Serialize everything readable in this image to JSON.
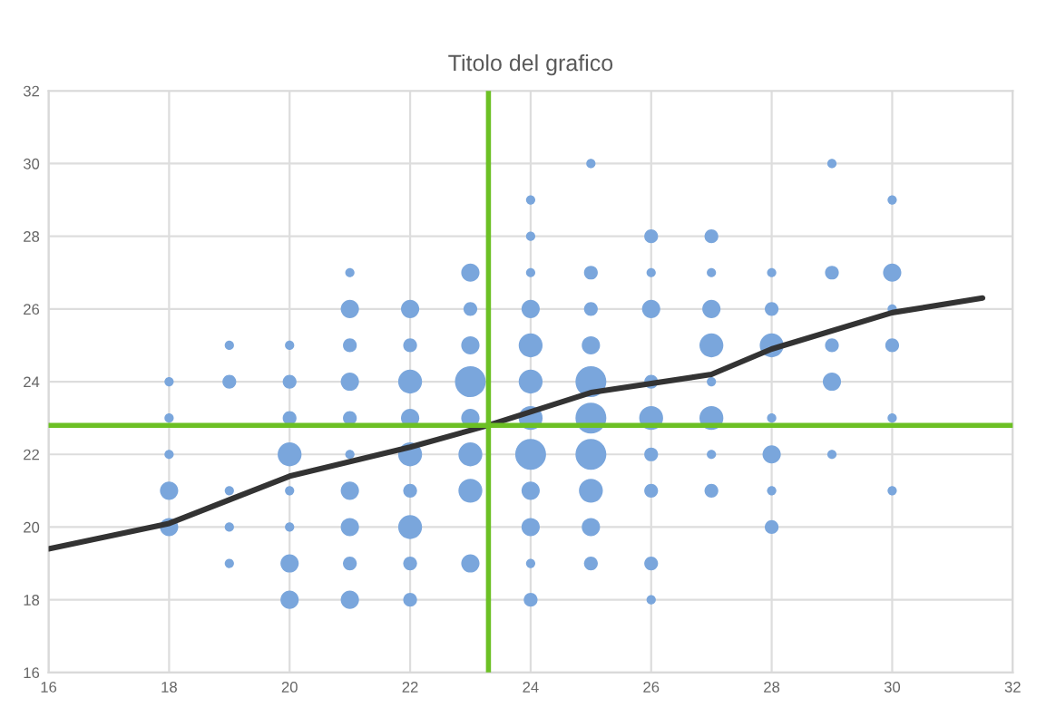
{
  "chart_data": {
    "type": "bubble",
    "title": "Titolo del grafico",
    "xlim": [
      16,
      32
    ],
    "xticks": [
      16,
      18,
      20,
      22,
      24,
      26,
      28,
      30,
      32
    ],
    "ylim": [
      16,
      32
    ],
    "yticks": [
      16,
      18,
      20,
      22,
      24,
      26,
      28,
      30,
      32
    ],
    "grid": true,
    "series": [
      {
        "color": "#7aa6dc",
        "x": [
          18,
          18,
          18,
          18,
          18,
          19,
          19,
          19,
          19,
          19,
          20,
          20,
          20,
          20,
          20,
          20,
          20,
          20,
          21,
          21,
          21,
          21,
          21,
          21,
          21,
          21,
          21,
          21,
          22,
          22,
          22,
          22,
          22,
          22,
          22,
          22,
          22,
          23,
          23,
          23,
          23,
          23,
          23,
          23,
          23,
          24,
          24,
          24,
          24,
          24,
          24,
          24,
          24,
          24,
          24,
          24,
          24,
          25,
          25,
          25,
          25,
          25,
          25,
          25,
          25,
          25,
          25,
          26,
          26,
          26,
          26,
          26,
          26,
          26,
          26,
          26,
          27,
          27,
          27,
          27,
          27,
          27,
          27,
          27,
          28,
          28,
          28,
          28,
          28,
          28,
          28,
          29,
          29,
          29,
          29,
          29,
          30,
          30,
          30,
          30,
          30,
          30
        ],
        "values": [
          24,
          23,
          22,
          21,
          20,
          25,
          24,
          21,
          20,
          19,
          25,
          24,
          23,
          22,
          21,
          20,
          19,
          18,
          27,
          26,
          25,
          24,
          23,
          22,
          21,
          20,
          19,
          18,
          26,
          25,
          24,
          23,
          22,
          21,
          20,
          19,
          18,
          27,
          26,
          25,
          24,
          23,
          22,
          21,
          19,
          29,
          28,
          27,
          26,
          25,
          24,
          23,
          22,
          21,
          20,
          19,
          18,
          30,
          27,
          26,
          25,
          24,
          23,
          22,
          21,
          20,
          19,
          28,
          27,
          26,
          24,
          23,
          22,
          21,
          19,
          18,
          28,
          27,
          26,
          25,
          24,
          23,
          22,
          21,
          27,
          26,
          25,
          23,
          22,
          21,
          20,
          30,
          27,
          25,
          24,
          22,
          29,
          27,
          26,
          25,
          23,
          21
        ],
        "sizes": [
          0.09,
          0.09,
          0.09,
          0.35,
          0.35,
          0.09,
          0.2,
          0.09,
          0.09,
          0.09,
          0.09,
          0.2,
          0.2,
          0.6,
          0.09,
          0.09,
          0.35,
          0.35,
          0.09,
          0.35,
          0.2,
          0.35,
          0.2,
          0.09,
          0.35,
          0.35,
          0.2,
          0.35,
          0.35,
          0.2,
          0.6,
          0.35,
          0.6,
          0.2,
          0.6,
          0.2,
          0.2,
          0.35,
          0.2,
          0.35,
          1,
          0.35,
          0.6,
          0.6,
          0.35,
          0.09,
          0.09,
          0.09,
          0.35,
          0.6,
          0.6,
          0.6,
          1,
          0.35,
          0.35,
          0.09,
          0.2,
          0.09,
          0.2,
          0.2,
          0.35,
          1,
          1,
          1,
          0.6,
          0.35,
          0.2,
          0.2,
          0.09,
          0.35,
          0.2,
          0.6,
          0.2,
          0.2,
          0.2,
          0.09,
          0.2,
          0.09,
          0.35,
          0.6,
          0.09,
          0.6,
          0.09,
          0.2,
          0.09,
          0.2,
          0.6,
          0.09,
          0.35,
          0.09,
          0.2,
          0.09,
          0.2,
          0.2,
          0.35,
          0.09,
          0.09,
          0.35,
          0.09,
          0.2,
          0.09,
          0.09
        ]
      },
      {
        "type": "line",
        "color": "#333333",
        "x": [
          16,
          18,
          20,
          22,
          23.3,
          25,
          27,
          28,
          30,
          31.5
        ],
        "values": [
          19.4,
          20.1,
          21.4,
          22.2,
          22.8,
          23.7,
          24.2,
          24.9,
          25.9,
          26.3
        ]
      }
    ],
    "ref_lines": [
      {
        "axis": "x",
        "value": 23.3,
        "color": "#6cc024"
      },
      {
        "axis": "y",
        "value": 22.8,
        "color": "#6cc024"
      }
    ]
  }
}
